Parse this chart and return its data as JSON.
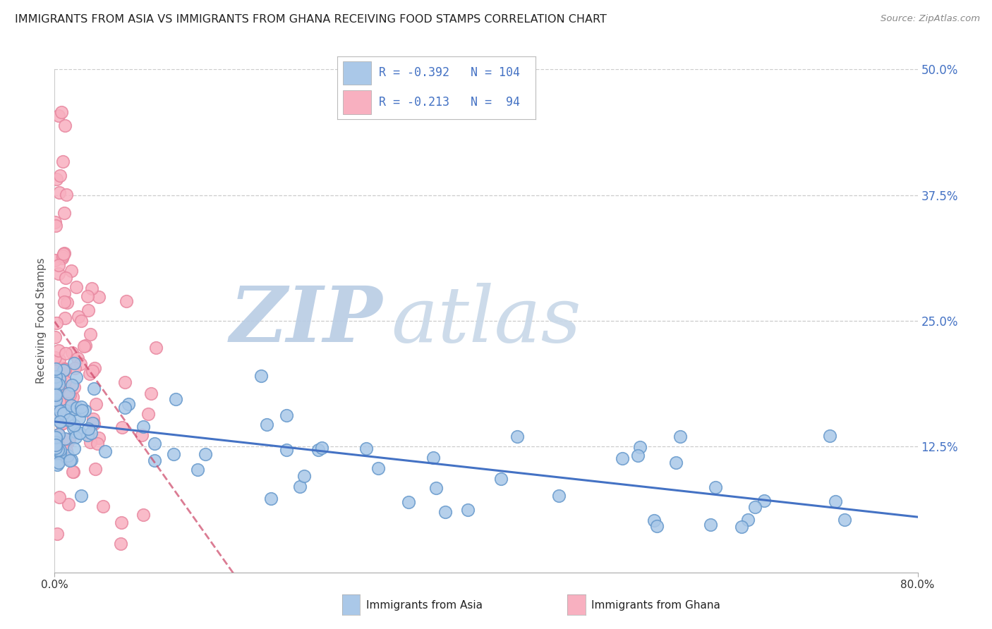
{
  "title": "IMMIGRANTS FROM ASIA VS IMMIGRANTS FROM GHANA RECEIVING FOOD STAMPS CORRELATION CHART",
  "source": "Source: ZipAtlas.com",
  "xlabel_asia": "Immigrants from Asia",
  "xlabel_ghana": "Immigrants from Ghana",
  "ylabel": "Receiving Food Stamps",
  "watermark_zip": "ZIP",
  "watermark_atlas": "atlas",
  "xlim": [
    0.0,
    0.8
  ],
  "ylim": [
    0.0,
    0.5
  ],
  "xtick_vals": [
    0.0,
    0.8
  ],
  "xtick_labels": [
    "0.0%",
    "80.0%"
  ],
  "ytick_vals": [
    0.0,
    0.125,
    0.25,
    0.375,
    0.5
  ],
  "ytick_labels": [
    "",
    "12.5%",
    "25.0%",
    "37.5%",
    "50.0%"
  ],
  "asia_fill_color": "#aac8e8",
  "ghana_fill_color": "#f8b0c0",
  "asia_edge_color": "#6699cc",
  "ghana_edge_color": "#e888a0",
  "asia_line_color": "#4472c4",
  "ghana_line_color": "#cc4466",
  "legend_text_color": "#4472c4",
  "ytick_color": "#4472c4",
  "xtick_color": "#333333",
  "asia_R": -0.392,
  "asia_N": 104,
  "ghana_R": -0.213,
  "ghana_N": 94,
  "bg_color": "#ffffff",
  "grid_color": "#cccccc",
  "title_color": "#222222",
  "source_color": "#888888",
  "watermark_color_zip": "#b8cce4",
  "watermark_color_atlas": "#c8d8e8"
}
